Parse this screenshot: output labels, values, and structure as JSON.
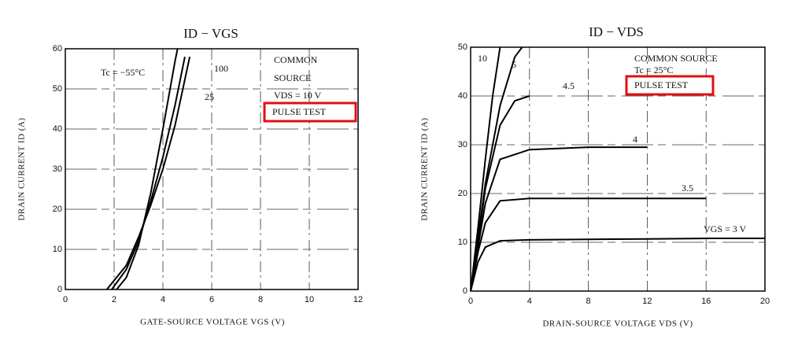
{
  "chart_data": [
    {
      "type": "line",
      "title": "ID − VGS",
      "x_label": "GATE-SOURCE VOLTAGE  VGS  (V)",
      "y_label": "DRAIN CURRENT  ID  (A)",
      "xlim": [
        0,
        12
      ],
      "xticks": [
        0,
        2,
        4,
        6,
        8,
        10,
        12
      ],
      "ylim": [
        0,
        60
      ],
      "yticks": [
        0,
        10,
        20,
        30,
        40,
        50,
        60
      ],
      "grid": true,
      "annotations": [
        "COMMON",
        "SOURCE",
        "VDS = 10 V",
        "PULSE TEST"
      ],
      "series": [
        {
          "name": "Tc = −55°C",
          "color": "#000000",
          "x": [
            2.1,
            2.5,
            3,
            3.5,
            4,
            4.5,
            4.6
          ],
          "values": [
            0,
            3,
            11,
            24,
            40,
            57,
            60
          ]
        },
        {
          "name": "25",
          "color": "#000000",
          "x": [
            1.9,
            2.5,
            3,
            3.5,
            4,
            4.5,
            4.9
          ],
          "values": [
            0,
            5,
            12,
            22,
            33,
            46,
            58
          ]
        },
        {
          "name": "100",
          "color": "#000000",
          "x": [
            1.7,
            2.5,
            3,
            3.5,
            4,
            4.5,
            5.1
          ],
          "values": [
            0,
            6,
            13,
            21,
            30,
            41,
            58
          ]
        }
      ]
    },
    {
      "type": "line",
      "title": "ID − VDS",
      "x_label": "DRAIN-SOURCE VOLTAGE  VDS  (V)",
      "y_label": "DRAIN CURRENT  ID  (A)",
      "xlim": [
        0,
        20
      ],
      "xticks": [
        0,
        4,
        8,
        12,
        16,
        20
      ],
      "ylim": [
        0,
        50
      ],
      "yticks": [
        0,
        10,
        20,
        30,
        40,
        50
      ],
      "grid": true,
      "annotations": [
        "COMMON SOURCE",
        "Tc = 25°C",
        "PULSE TEST"
      ],
      "series": [
        {
          "name": "10",
          "color": "#000000",
          "x": [
            0,
            0.5,
            1,
            1.5,
            2
          ],
          "values": [
            0,
            13,
            27,
            40,
            50
          ]
        },
        {
          "name": "5",
          "color": "#000000",
          "x": [
            0,
            0.5,
            1,
            2,
            3,
            3.5
          ],
          "values": [
            0,
            11,
            22,
            38,
            48,
            50
          ]
        },
        {
          "name": "4.5",
          "color": "#000000",
          "x": [
            0,
            0.5,
            1,
            2,
            3,
            4
          ],
          "values": [
            0,
            10,
            21,
            34,
            39,
            40
          ]
        },
        {
          "name": "4",
          "color": "#000000",
          "x": [
            0,
            0.5,
            1,
            2,
            4,
            8,
            12
          ],
          "values": [
            0,
            9,
            18,
            27,
            29,
            29.5,
            29.5
          ]
        },
        {
          "name": "3.5",
          "color": "#000000",
          "x": [
            0,
            0.5,
            1,
            2,
            4,
            8,
            12,
            16
          ],
          "values": [
            0,
            8,
            14,
            18.5,
            19,
            19,
            19,
            19
          ]
        },
        {
          "name": "VGS = 3 V",
          "color": "#000000",
          "x": [
            0,
            0.5,
            1,
            2,
            4,
            8,
            12,
            16,
            20
          ],
          "values": [
            0,
            6,
            9,
            10.3,
            10.5,
            10.6,
            10.7,
            10.8,
            10.8
          ]
        }
      ]
    }
  ]
}
